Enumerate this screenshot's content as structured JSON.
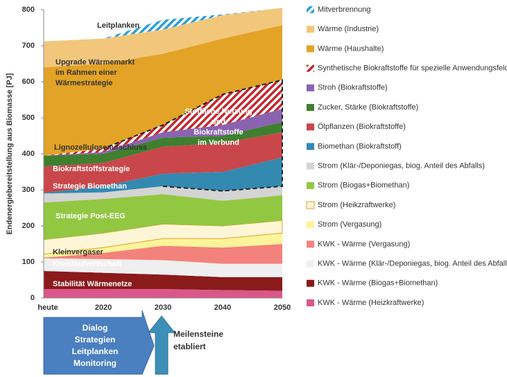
{
  "chart_data": {
    "type": "stacked_area",
    "y_label": "Endenergiebereitstellung aus Biomasse [PJ]",
    "categories": [
      "heute",
      "2020",
      "2030",
      "2040",
      "2050"
    ],
    "ylim": [
      0,
      800
    ],
    "yticks": [
      0,
      100,
      200,
      300,
      400,
      500,
      600,
      700,
      800
    ],
    "series": [
      {
        "name": "KWK - Wärme (Heizkraftwerke)",
        "color": "#d9578a",
        "values": [
          25,
          25,
          25,
          22,
          20
        ]
      },
      {
        "name": "KWK - Wärme (Biogas+Biomethan)",
        "color": "#8b1a1a",
        "values": [
          50,
          45,
          40,
          36,
          38
        ]
      },
      {
        "name": "KWK - Wärme (Klär-/Deponiegas, biog. Anteil des Abfalls)",
        "color": "#efefef",
        "values": [
          35,
          38,
          40,
          37,
          37
        ]
      },
      {
        "name": "KWK - Wärme (Vergasung)",
        "color": "#f4827c",
        "values": [
          2,
          17,
          40,
          45,
          55
        ]
      },
      {
        "name": "Strom (Vergasung)",
        "color": "#fbf49a",
        "values": [
          10,
          15,
          20,
          25,
          30
        ]
      },
      {
        "name": "Strom (Heikzraftwerke)",
        "color": "#fdf6d6",
        "edge": "#e0a030",
        "values": [
          40,
          40,
          40,
          35,
          35
        ]
      },
      {
        "name": "Strom (Biogas+Biomethan)",
        "color": "#92c742",
        "values": [
          103,
          95,
          83,
          70,
          70
        ]
      },
      {
        "name": "Strom (Klär-/Deponiegas, biog. Anteil des Abfalls)",
        "color": "#d4d4d4",
        "values": [
          25,
          18,
          22,
          27,
          25
        ]
      },
      {
        "name": "Biomethan (Biokraftstoff)",
        "color": "#3389b0",
        "values": [
          2,
          17,
          35,
          53,
          80
        ]
      },
      {
        "name": "Ölpflanzen (Biokraftstoffe)",
        "color": "#c9474a",
        "values": [
          73,
          65,
          75,
          80,
          70
        ]
      },
      {
        "name": "Zucker, Stärke (Biokraftstoffe)",
        "color": "#3f7f2f",
        "values": [
          30,
          25,
          25,
          20,
          28
        ]
      },
      {
        "name": "Stroh  (Biokraftstoffe)",
        "color": "#8a63b0",
        "values": [
          0,
          5,
          15,
          30,
          37
        ]
      },
      {
        "name": "Synthetische Biokraftstoffe für spezielle Anwendungsfelder",
        "color": "#c0282d",
        "hatch": true,
        "values": [
          0,
          10,
          20,
          85,
          80
        ]
      },
      {
        "name": "Wärme (Haushalte)",
        "color": "#e2a326",
        "values": [
          245,
          235,
          198,
          155,
          152
        ]
      },
      {
        "name": "Wärme (Industrie)",
        "color": "#f2c77c",
        "values": [
          72,
          70,
          67,
          65,
          48
        ]
      },
      {
        "name": "Mitverbrennung",
        "color": "#2a9fd8",
        "hatch": true,
        "values": [
          0,
          0,
          27,
          2,
          0
        ]
      }
    ],
    "annotations": [
      [
        "Leitplanken"
      ],
      [
        "Upgrade Wärmemarkt",
        "im Rahmen einer",
        "Wärmestrategie"
      ],
      [
        "Lignozelluloseaufschluss"
      ],
      [
        "Biokraftstoffstrategie"
      ],
      [
        "Strategie Biomethan"
      ],
      [
        "Strategie Post-EEG"
      ],
      [
        "Kleinvergaser"
      ],
      [
        "Kreislaufwirtschaft"
      ],
      [
        "Stabilität Wärmenetze"
      ],
      [
        "Stoffliche Nutzung",
        "und",
        "Biokraftstoffe",
        "im Verbund"
      ]
    ]
  },
  "roadmap": {
    "process": [
      "Dialog",
      "Strategien",
      "Leitplanken",
      "Monitoring"
    ],
    "milestones": [
      "Meilensteine",
      "etabliert"
    ]
  }
}
